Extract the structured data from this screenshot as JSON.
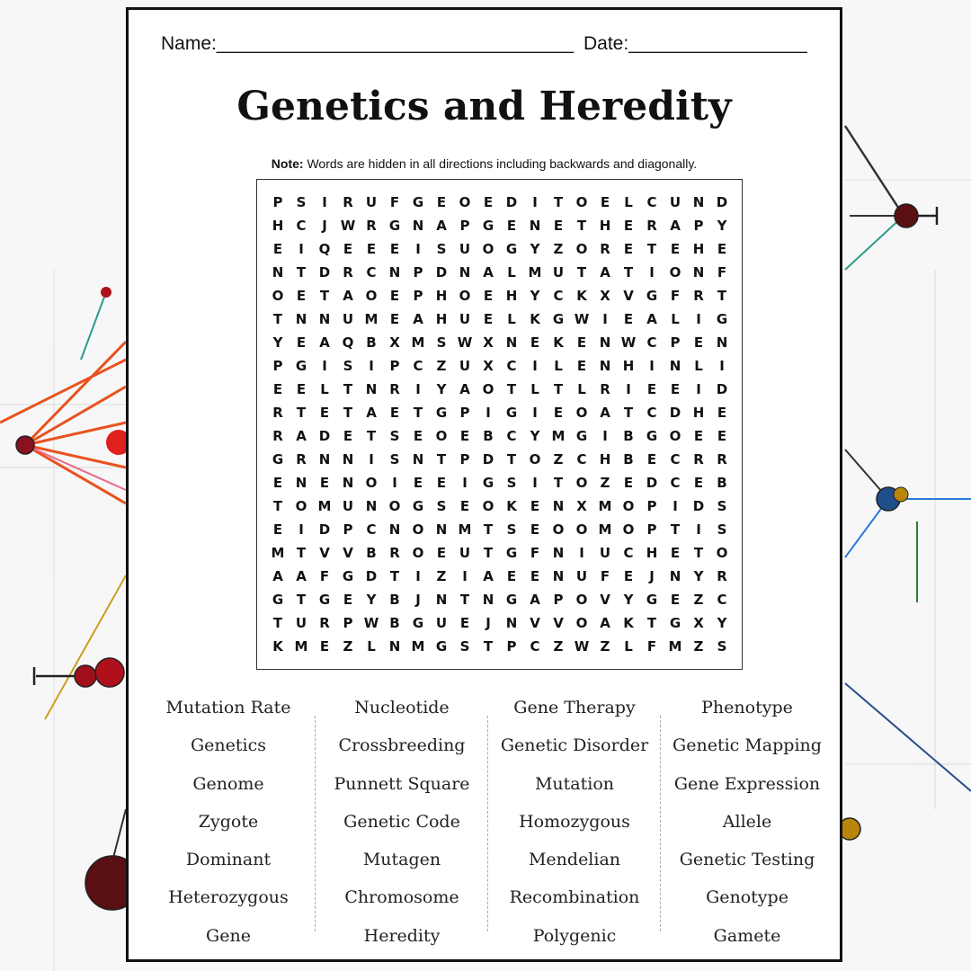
{
  "header": {
    "name_label": "Name:__________________________________",
    "date_label": "Date:_________________"
  },
  "title": "Genetics and Heredity",
  "note": {
    "bold": "Note:",
    "text": " Words are hidden in all directions including backwards and diagonally."
  },
  "grid": [
    "PSIRUFGEOEDITOELCUND",
    "HCJWRGNAPGENETHERAPY",
    "EIQEEEISUOGYZORETEHE",
    "NTDRCNPDNALMUTATIONF",
    "OETAOEPHOEHYCKXVGFRT",
    "TNNUMEAHUELKGWIEALIG",
    "YEAQBXMSWXNEKENWCPEN",
    "PGISIPCZUXCILENHINLI",
    "EELTNRIYAOTLTLRIEEID",
    "RTETAETGPIGIEOATCDHE",
    "RADETSEOEBCYMGIBGOEE",
    "GRNNISNTPDTOZCHBECRR",
    "ENENOIEEIGSITOZEDCEB",
    "TOMUNOGSEOKENXMOPIDS",
    "EIDPCNONMTSEOOMOPTIS",
    "MTVVBROEUTGFNIUCHETO",
    "AAFGDTIZIAEENUFEJNYR",
    "GTGEYBJNTNGAPOVYGEZC",
    "TURPWBGUEJNVVOAKTGXY",
    "KMEZLNMGSTPCZWZLFMZS"
  ],
  "words": [
    [
      "Mutation Rate",
      "Genetics",
      "Genome",
      "Zygote",
      "Dominant",
      "Heterozygous",
      "Gene"
    ],
    [
      "Nucleotide",
      "Crossbreeding",
      "Punnett Square",
      "Genetic Code",
      "Mutagen",
      "Chromosome",
      "Heredity"
    ],
    [
      "Gene Therapy",
      "Genetic Disorder",
      "Mutation",
      "Homozygous",
      "Mendelian",
      "Recombination",
      "Polygenic"
    ],
    [
      "Phenotype",
      "Genetic Mapping",
      "Gene Expression",
      "Allele",
      "Genetic Testing",
      "Genotype",
      "Gamete"
    ]
  ],
  "background": {
    "node_colors": [
      "#5a0f12",
      "#b0101c",
      "#1e4f8a",
      "#b8860b"
    ],
    "line_colors": [
      "#e8521e",
      "#2b9c8b",
      "#333333"
    ]
  }
}
